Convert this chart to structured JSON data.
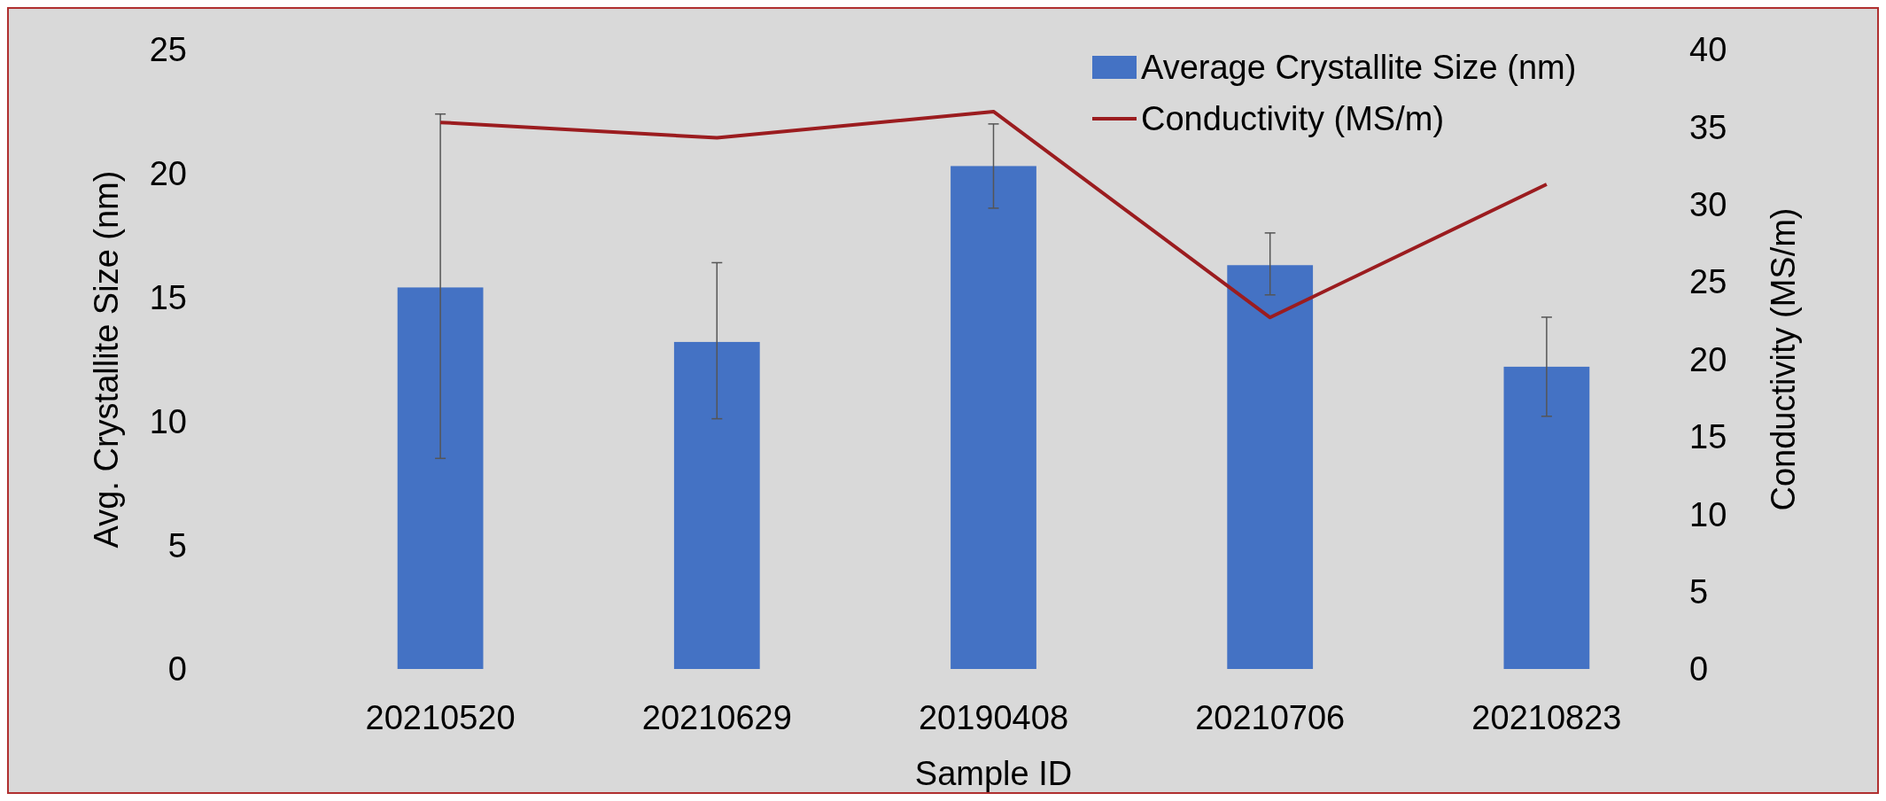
{
  "chart_data": {
    "type": "bar",
    "xlabel": "Sample ID",
    "ylabel": "Avg. Crystallite Size (nm)",
    "y2label": "Conductivity (MS/m)",
    "categories": [
      "20210520",
      "20210629",
      "20190408",
      "20210706",
      "20210823"
    ],
    "series": [
      {
        "name": "Average Crystallite Size (nm)",
        "color": "#4472c4",
        "values": [
          15.4,
          13.2,
          20.3,
          16.3,
          12.2
        ],
        "errors": [
          [
            8.5,
            22.4
          ],
          [
            10.1,
            16.4
          ],
          [
            18.6,
            22.0
          ],
          [
            15.1,
            17.6
          ],
          [
            10.2,
            14.2
          ]
        ]
      },
      {
        "name": "Conductivity (MS/m)",
        "type": "line",
        "axis": "y2",
        "color": "#9b1c1f",
        "values": [
          35.3,
          34.3,
          36.0,
          22.7,
          31.3
        ],
        "marker": "none"
      }
    ],
    "ylim": [
      0,
      25
    ],
    "yticks": [
      0,
      5,
      10,
      15,
      20,
      25
    ],
    "y2lim": [
      0,
      40
    ],
    "y2ticks": [
      0,
      5,
      10,
      15,
      20,
      25,
      30,
      35,
      40
    ],
    "grid": false,
    "legend": "top right"
  }
}
